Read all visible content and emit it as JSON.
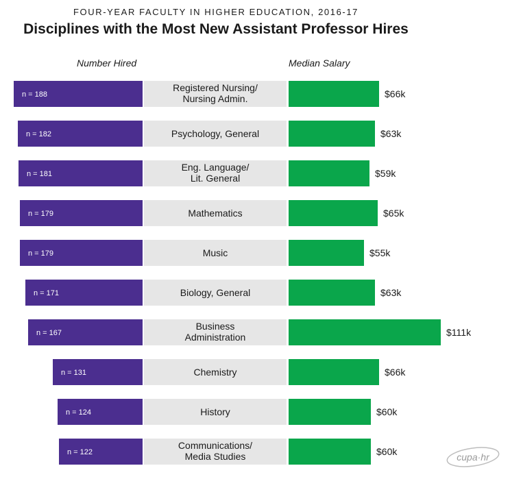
{
  "header": {
    "supertitle": "FOUR-YEAR FACULTY IN HIGHER EDUCATION, 2016-17",
    "title": "Disciplines with the Most New Assistant Professor Hires",
    "left_label": "Number Hired",
    "right_label": "Median Salary"
  },
  "logo": {
    "text": "cupa·hr"
  },
  "colors": {
    "hired_bar": "#4b2e8f",
    "salary_bar": "#0aa64b",
    "category_band": "#e6e6e6"
  },
  "chart_data": {
    "type": "bar",
    "categories": [
      [
        "Registered Nursing/",
        "Nursing Admin."
      ],
      [
        "Psychology, General"
      ],
      [
        "Eng. Language/",
        "Lit. General"
      ],
      [
        "Mathematics"
      ],
      [
        "Music"
      ],
      [
        "Biology, General"
      ],
      [
        "Business",
        "Administration"
      ],
      [
        "Chemistry"
      ],
      [
        "History"
      ],
      [
        "Communications/",
        "Media Studies"
      ]
    ],
    "series": [
      {
        "name": "Number Hired",
        "values": [
          188,
          182,
          181,
          179,
          179,
          171,
          167,
          131,
          124,
          122
        ],
        "labels": [
          "n = 188",
          "n = 182",
          "n = 181",
          "n = 179",
          "n = 179",
          "n = 171",
          "n = 167",
          "n = 131",
          "n = 124",
          "n = 122"
        ]
      },
      {
        "name": "Median Salary",
        "values": [
          66,
          63,
          59,
          65,
          55,
          63,
          111,
          66,
          60,
          60
        ],
        "labels": [
          "$66k",
          "$63k",
          "$59k",
          "$65k",
          "$55k",
          "$63k",
          "$111k",
          "$66k",
          "$60k",
          "$60k"
        ]
      }
    ]
  }
}
